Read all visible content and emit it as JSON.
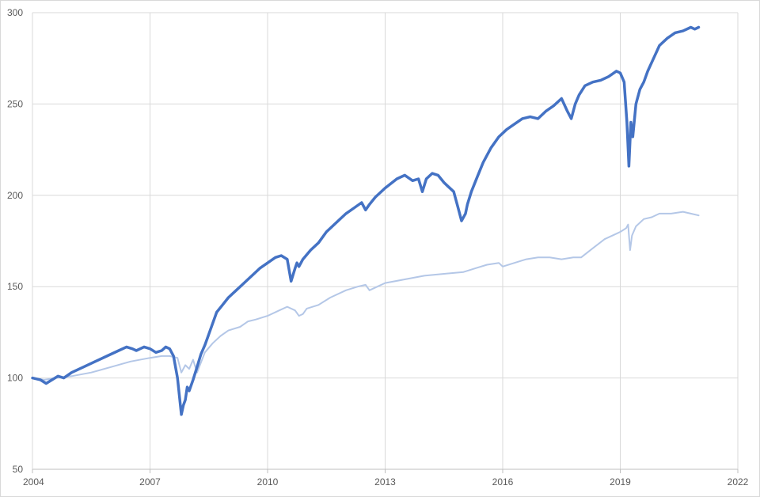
{
  "chart_data": {
    "type": "line",
    "title": "",
    "xlabel": "",
    "ylabel": "",
    "xlim": [
      2004,
      2022
    ],
    "ylim": [
      50,
      300
    ],
    "x_ticks": [
      2004,
      2007,
      2010,
      2013,
      2016,
      2019,
      2022
    ],
    "x_tick_labels": [
      "2004",
      "2007",
      "2010",
      "2013",
      "2016",
      "2019",
      "2022"
    ],
    "y_ticks": [
      50,
      100,
      150,
      200,
      250,
      300
    ],
    "y_tick_labels": [
      "50",
      "100",
      "150",
      "200",
      "250",
      "300"
    ],
    "grid": true,
    "legend": "none",
    "series": [
      {
        "color": "#4472c4",
        "line_width": 3.5,
        "x": [
          2004.0,
          2004.2,
          2004.35,
          2004.5,
          2004.65,
          2004.8,
          2005.0,
          2005.3,
          2005.6,
          2005.9,
          2006.2,
          2006.4,
          2006.55,
          2006.65,
          2006.75,
          2006.85,
          2007.0,
          2007.15,
          2007.3,
          2007.4,
          2007.5,
          2007.6,
          2007.7,
          2007.8,
          2007.85,
          2007.9,
          2007.95,
          2008.0,
          2008.1,
          2008.2,
          2008.3,
          2008.4,
          2008.5,
          2008.6,
          2008.7,
          2008.85,
          2009.0,
          2009.2,
          2009.4,
          2009.6,
          2009.8,
          2010.0,
          2010.2,
          2010.35,
          2010.5,
          2010.6,
          2010.7,
          2010.75,
          2010.8,
          2010.9,
          2011.1,
          2011.3,
          2011.5,
          2011.8,
          2012.0,
          2012.2,
          2012.4,
          2012.5,
          2012.6,
          2012.75,
          2013.0,
          2013.3,
          2013.5,
          2013.7,
          2013.85,
          2013.95,
          2014.05,
          2014.2,
          2014.35,
          2014.5,
          2014.6,
          2014.75,
          2014.85,
          2014.95,
          2015.05,
          2015.1,
          2015.2,
          2015.35,
          2015.5,
          2015.7,
          2015.9,
          2016.1,
          2016.3,
          2016.5,
          2016.7,
          2016.9,
          2017.1,
          2017.3,
          2017.5,
          2017.65,
          2017.75,
          2017.85,
          2017.95,
          2018.1,
          2018.3,
          2018.5,
          2018.7,
          2018.9,
          2019.0,
          2019.1,
          2019.17,
          2019.22,
          2019.27,
          2019.32,
          2019.4,
          2019.5,
          2019.6,
          2019.7,
          2019.85,
          2020.0,
          2020.2,
          2020.4,
          2020.6,
          2020.8,
          2020.9,
          2021.0
        ],
        "y": [
          100,
          99,
          97,
          99,
          101,
          100,
          103,
          106,
          109,
          112,
          115,
          117,
          116,
          115,
          116,
          117,
          116,
          114,
          115,
          117,
          116,
          112,
          100,
          80,
          85,
          88,
          95,
          93,
          99,
          106,
          113,
          118,
          124,
          130,
          136,
          140,
          144,
          148,
          152,
          156,
          160,
          163,
          166,
          167,
          165,
          153,
          160,
          163,
          161,
          165,
          170,
          174,
          180,
          186,
          190,
          193,
          196,
          192,
          195,
          199,
          204,
          209,
          211,
          208,
          209,
          202,
          209,
          212,
          211,
          207,
          205,
          202,
          194,
          186,
          190,
          195,
          202,
          210,
          218,
          226,
          232,
          236,
          239,
          242,
          243,
          242,
          246,
          249,
          253,
          246,
          242,
          250,
          255,
          260,
          262,
          263,
          265,
          268,
          267,
          262,
          240,
          216,
          240,
          232,
          250,
          258,
          262,
          268,
          275,
          282,
          286,
          289,
          290,
          292,
          291,
          292
        ]
      },
      {
        "color": "#b4c7e7",
        "line_width": 2,
        "x": [
          2004.0,
          2004.3,
          2004.6,
          2005.0,
          2005.5,
          2006.0,
          2006.5,
          2007.0,
          2007.3,
          2007.5,
          2007.7,
          2007.8,
          2007.9,
          2008.0,
          2008.1,
          2008.2,
          2008.4,
          2008.6,
          2008.8,
          2009.0,
          2009.3,
          2009.5,
          2009.7,
          2010.0,
          2010.3,
          2010.5,
          2010.7,
          2010.8,
          2010.9,
          2011.0,
          2011.3,
          2011.6,
          2012.0,
          2012.3,
          2012.5,
          2012.6,
          2012.8,
          2013.0,
          2013.5,
          2014.0,
          2014.5,
          2015.0,
          2015.3,
          2015.6,
          2015.9,
          2016.0,
          2016.3,
          2016.6,
          2016.9,
          2017.2,
          2017.5,
          2017.8,
          2018.0,
          2018.3,
          2018.6,
          2018.9,
          2019.0,
          2019.15,
          2019.2,
          2019.25,
          2019.3,
          2019.4,
          2019.6,
          2019.8,
          2020.0,
          2020.3,
          2020.6,
          2020.8,
          2021.0
        ],
        "y": [
          100,
          99,
          100,
          101,
          103,
          106,
          109,
          111,
          112,
          112,
          111,
          103,
          107,
          105,
          110,
          103,
          114,
          119,
          123,
          126,
          128,
          131,
          132,
          134,
          137,
          139,
          137,
          134,
          135,
          138,
          140,
          144,
          148,
          150,
          151,
          148,
          150,
          152,
          154,
          156,
          157,
          158,
          160,
          162,
          163,
          161,
          163,
          165,
          166,
          166,
          165,
          166,
          166,
          171,
          176,
          179,
          180,
          182,
          184,
          170,
          178,
          183,
          187,
          188,
          190,
          190,
          191,
          190,
          189
        ]
      }
    ]
  }
}
